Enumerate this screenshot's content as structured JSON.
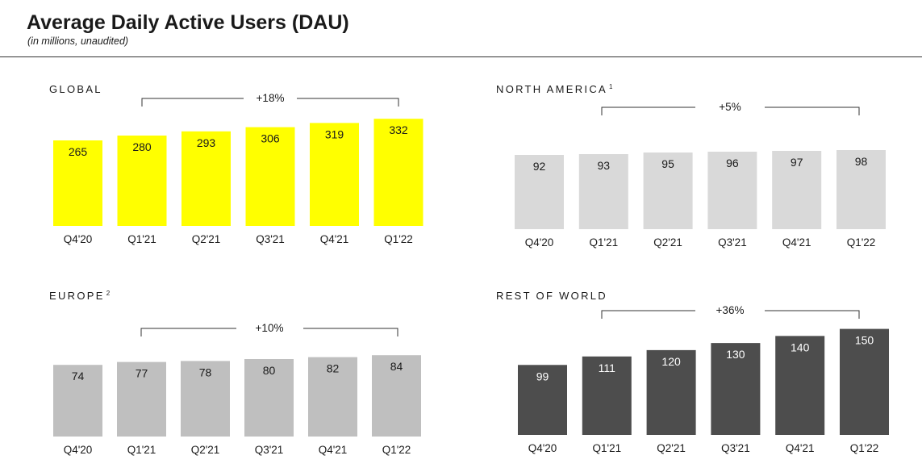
{
  "title": "Average Daily Active Users (DAU)",
  "subtitle": "(in millions, unaudited)",
  "chart_data": [
    {
      "type": "bar",
      "title": "GLOBAL",
      "footnote": "",
      "categories": [
        "Q4'20",
        "Q1'21",
        "Q2'21",
        "Q3'21",
        "Q4'21",
        "Q1'22"
      ],
      "values": [
        265,
        280,
        293,
        306,
        319,
        332
      ],
      "data_labels": [
        "265",
        "280",
        "293",
        "306",
        "319",
        "332"
      ],
      "growth_label": "+18%",
      "color": "#ffff00",
      "label_color": "#1a1a1a",
      "legend": "none",
      "grid": false
    },
    {
      "type": "bar",
      "title": "NORTH AMERICA",
      "footnote": "1",
      "categories": [
        "Q4'20",
        "Q1'21",
        "Q2'21",
        "Q3'21",
        "Q4'21",
        "Q1'22"
      ],
      "values": [
        92,
        93,
        95,
        96,
        97,
        98
      ],
      "data_labels": [
        "92",
        "93",
        "95",
        "96",
        "97",
        "98"
      ],
      "growth_label": "+5%",
      "color": "#d9d9d9",
      "label_color": "#1a1a1a",
      "legend": "none",
      "grid": false
    },
    {
      "type": "bar",
      "title": "EUROPE",
      "footnote": "2",
      "categories": [
        "Q4'20",
        "Q1'21",
        "Q2'21",
        "Q3'21",
        "Q4'21",
        "Q1'22"
      ],
      "values": [
        74,
        77,
        78,
        80,
        82,
        84
      ],
      "data_labels": [
        "74",
        "77",
        "78",
        "80",
        "82",
        "84"
      ],
      "growth_label": "+10%",
      "color": "#bfbfbf",
      "label_color": "#1a1a1a",
      "legend": "none",
      "grid": false
    },
    {
      "type": "bar",
      "title": "REST OF WORLD",
      "footnote": "",
      "categories": [
        "Q4'20",
        "Q1'21",
        "Q2'21",
        "Q3'21",
        "Q4'21",
        "Q1'22"
      ],
      "values": [
        99,
        111,
        120,
        130,
        140,
        150
      ],
      "data_labels": [
        "99",
        "111",
        "120",
        "130",
        "140",
        "150"
      ],
      "growth_label": "+36%",
      "color": "#4d4d4d",
      "label_color": "#ffffff",
      "legend": "none",
      "grid": false
    }
  ]
}
